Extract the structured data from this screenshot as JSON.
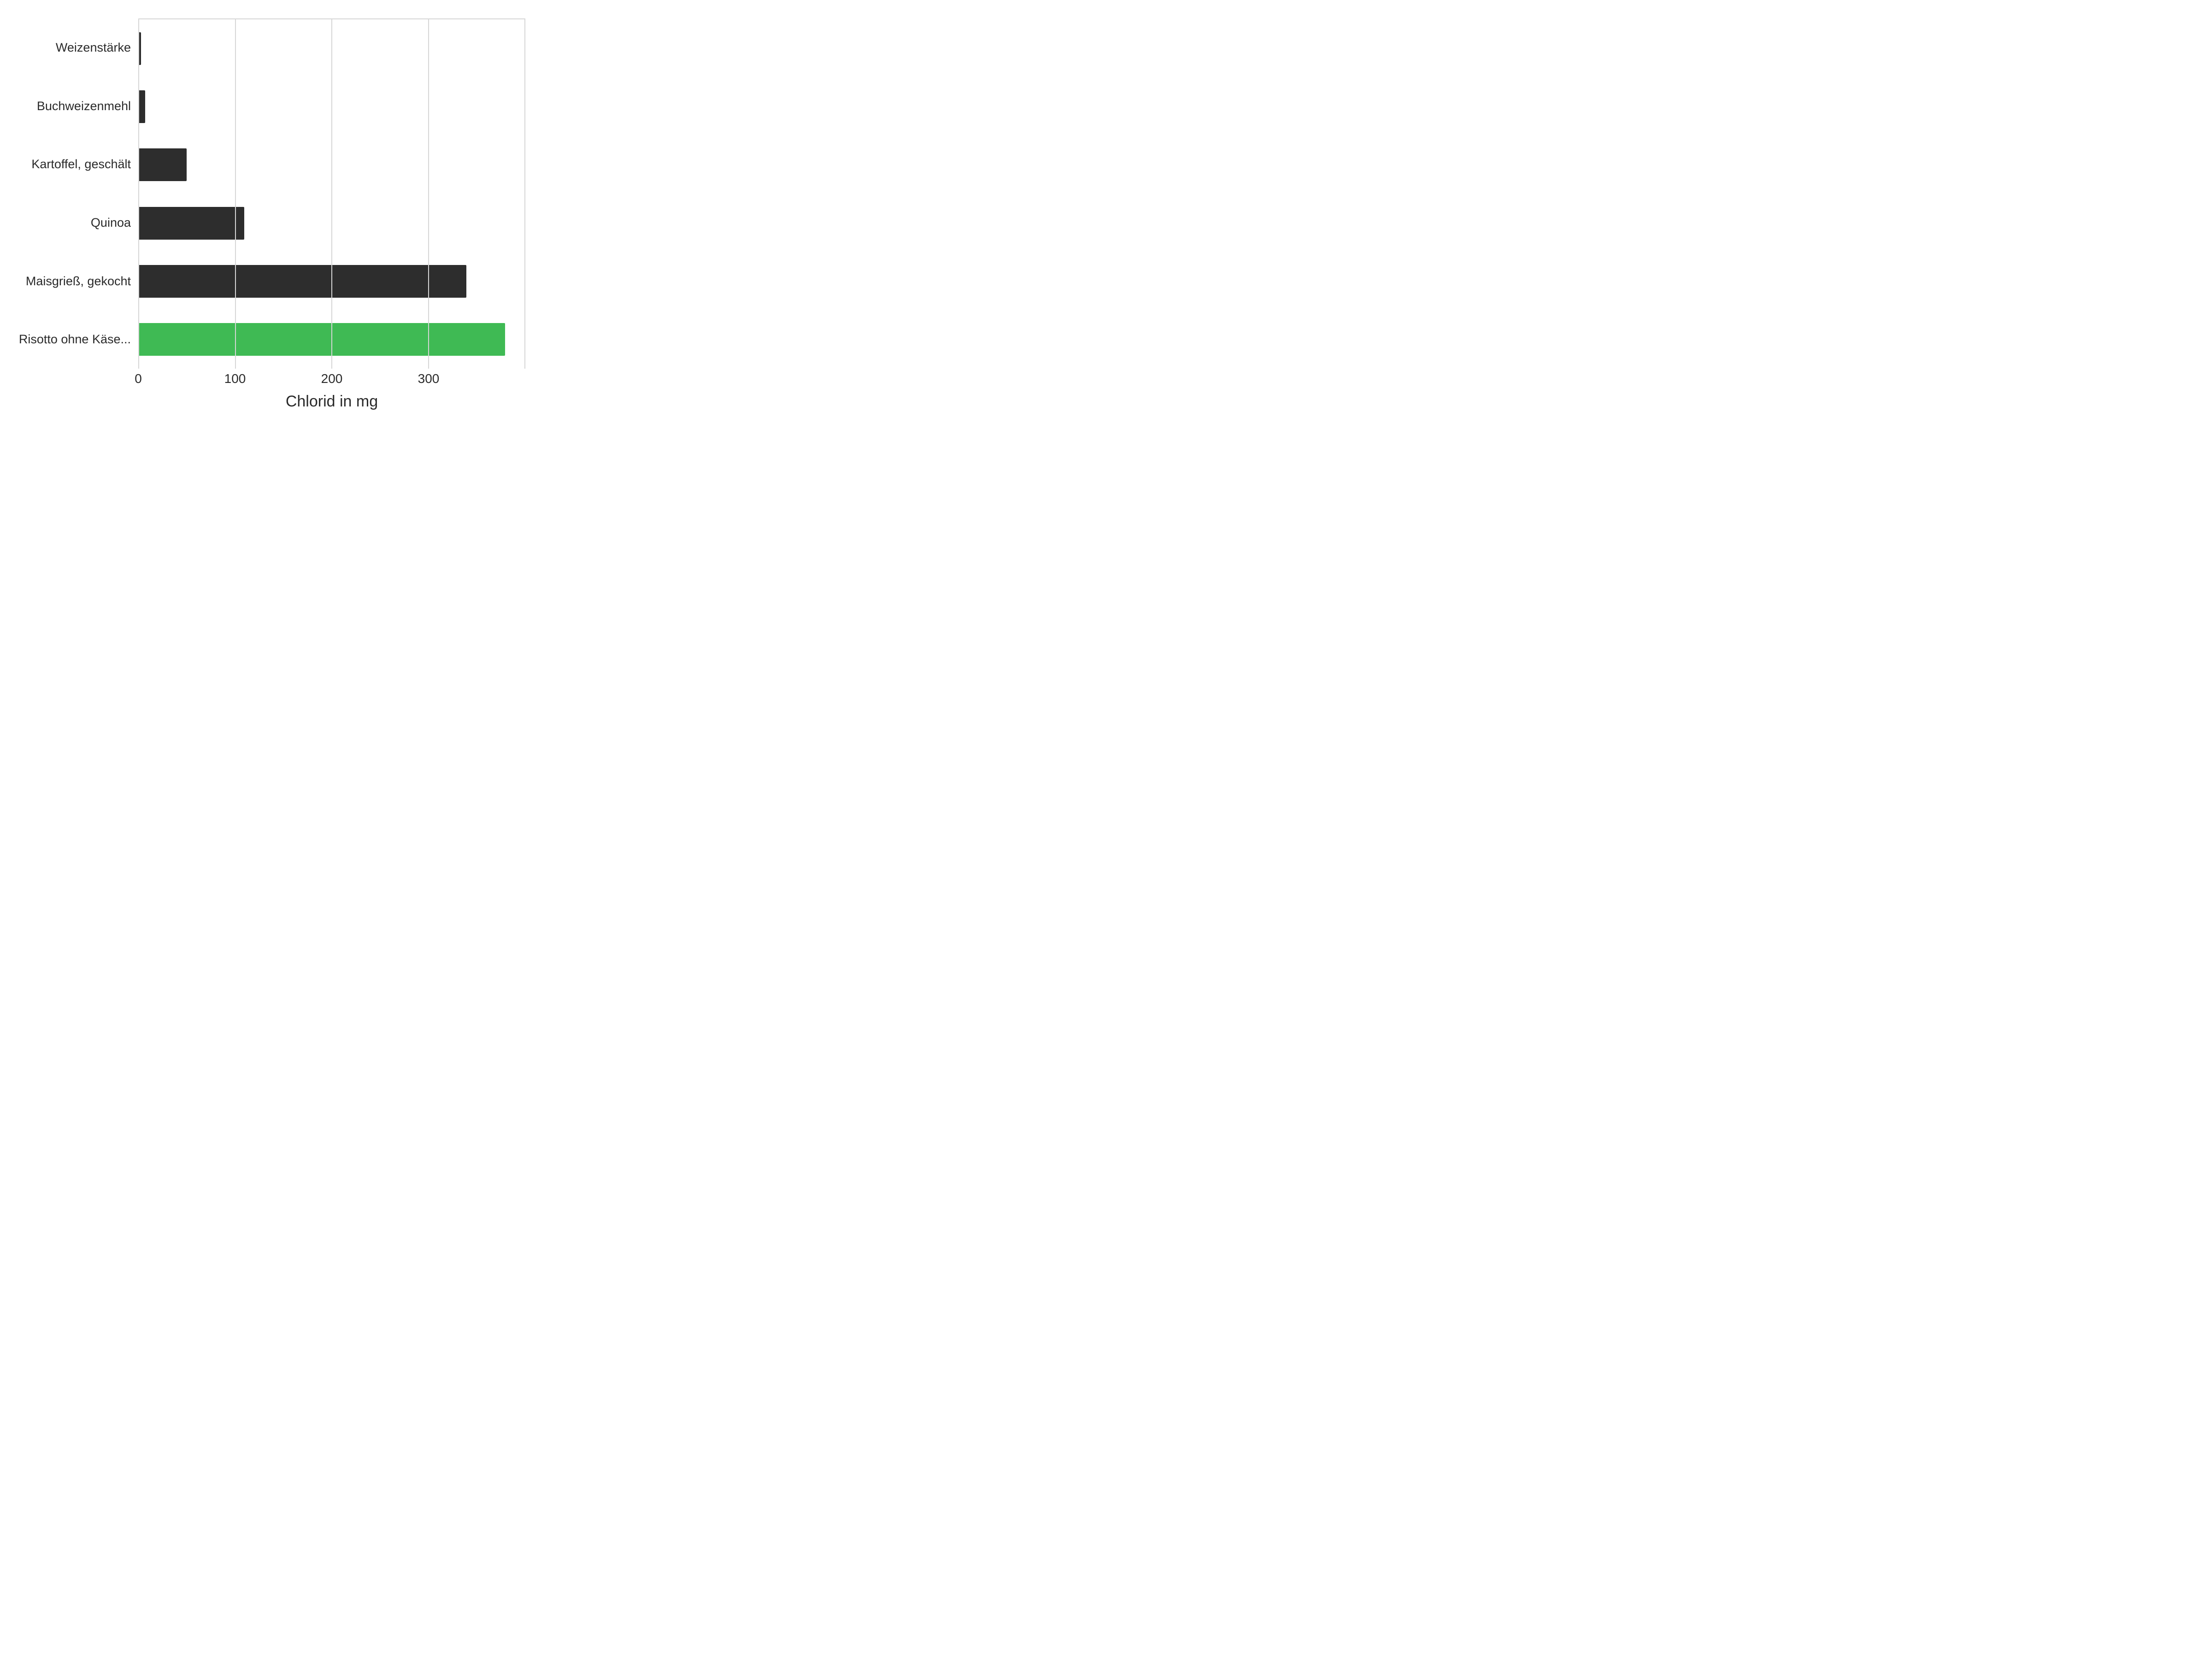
{
  "chart": {
    "type": "bar-horizontal",
    "x_title": "Chlorid in mg",
    "x_min": 0,
    "x_max": 400,
    "x_ticks": [
      0,
      100,
      200,
      300
    ],
    "background_color": "#ffffff",
    "grid_color": "#d6d6d6",
    "text_color": "#2a2a2a",
    "label_fontsize": 27,
    "tick_fontsize": 28,
    "title_fontsize": 34,
    "bar_height_ratio": 0.56,
    "default_bar_color": "#2d2d2d",
    "highlight_bar_color": "#3fba54",
    "bars": [
      {
        "label": "Weizenstärke",
        "value": 3,
        "color": "#2d2d2d"
      },
      {
        "label": "Buchweizenmehl",
        "value": 7,
        "color": "#2d2d2d"
      },
      {
        "label": "Kartoffel, geschält",
        "value": 50,
        "color": "#2d2d2d"
      },
      {
        "label": "Quinoa",
        "value": 110,
        "color": "#2d2d2d"
      },
      {
        "label": "Maisgrieß, gekocht",
        "value": 340,
        "color": "#2d2d2d"
      },
      {
        "label": "Risotto ohne Käse...",
        "value": 380,
        "color": "#3fba54"
      }
    ]
  }
}
